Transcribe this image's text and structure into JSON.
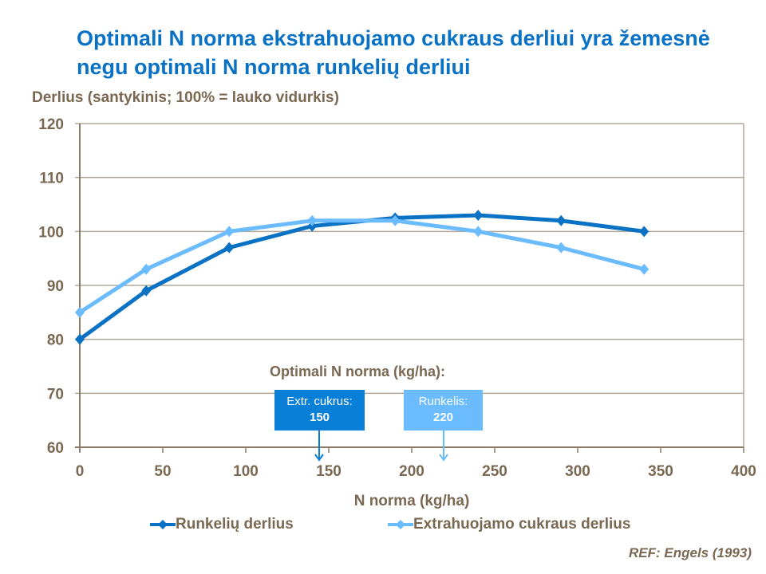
{
  "title": "Optimali N norma ekstrahuojamo cukraus derliui yra žemesnė negu optimali N norma runkelių derliui",
  "reference": "REF: Engels (1993)",
  "annotation": {
    "title": "Optimali  N norma (kg/ha):",
    "boxes": [
      {
        "label": "Extr. cukrus:",
        "value": "150",
        "color": "#0a7fd8"
      },
      {
        "label": "Runkelis:",
        "value": "220",
        "color": "#6bbcff"
      }
    ]
  },
  "chart_data": {
    "type": "line",
    "ylabel": "Derlius (santykinis; 100%  = lauko vidurkis)",
    "xlabel": "N norma (kg/ha)",
    "xlim": [
      0,
      400
    ],
    "ylim": [
      60,
      120
    ],
    "xticks": [
      "0",
      "50",
      "100",
      "150",
      "200",
      "250",
      "300",
      "350",
      "400"
    ],
    "yticks": [
      "60",
      "70",
      "80",
      "90",
      "100",
      "110",
      "120"
    ],
    "grid": "horizontal",
    "legend": "bottom",
    "x": [
      0,
      40,
      90,
      140,
      190,
      240,
      290,
      340
    ],
    "series": [
      {
        "name": "Runkelių derlius",
        "color": "#0a72c4",
        "values": [
          80,
          89,
          97,
          101,
          102.5,
          103,
          102,
          100
        ]
      },
      {
        "name": "Extrahuojamo cukraus derlius",
        "color": "#6bbcff",
        "values": [
          85,
          93,
          100,
          102,
          102,
          100,
          97,
          93
        ]
      }
    ]
  }
}
